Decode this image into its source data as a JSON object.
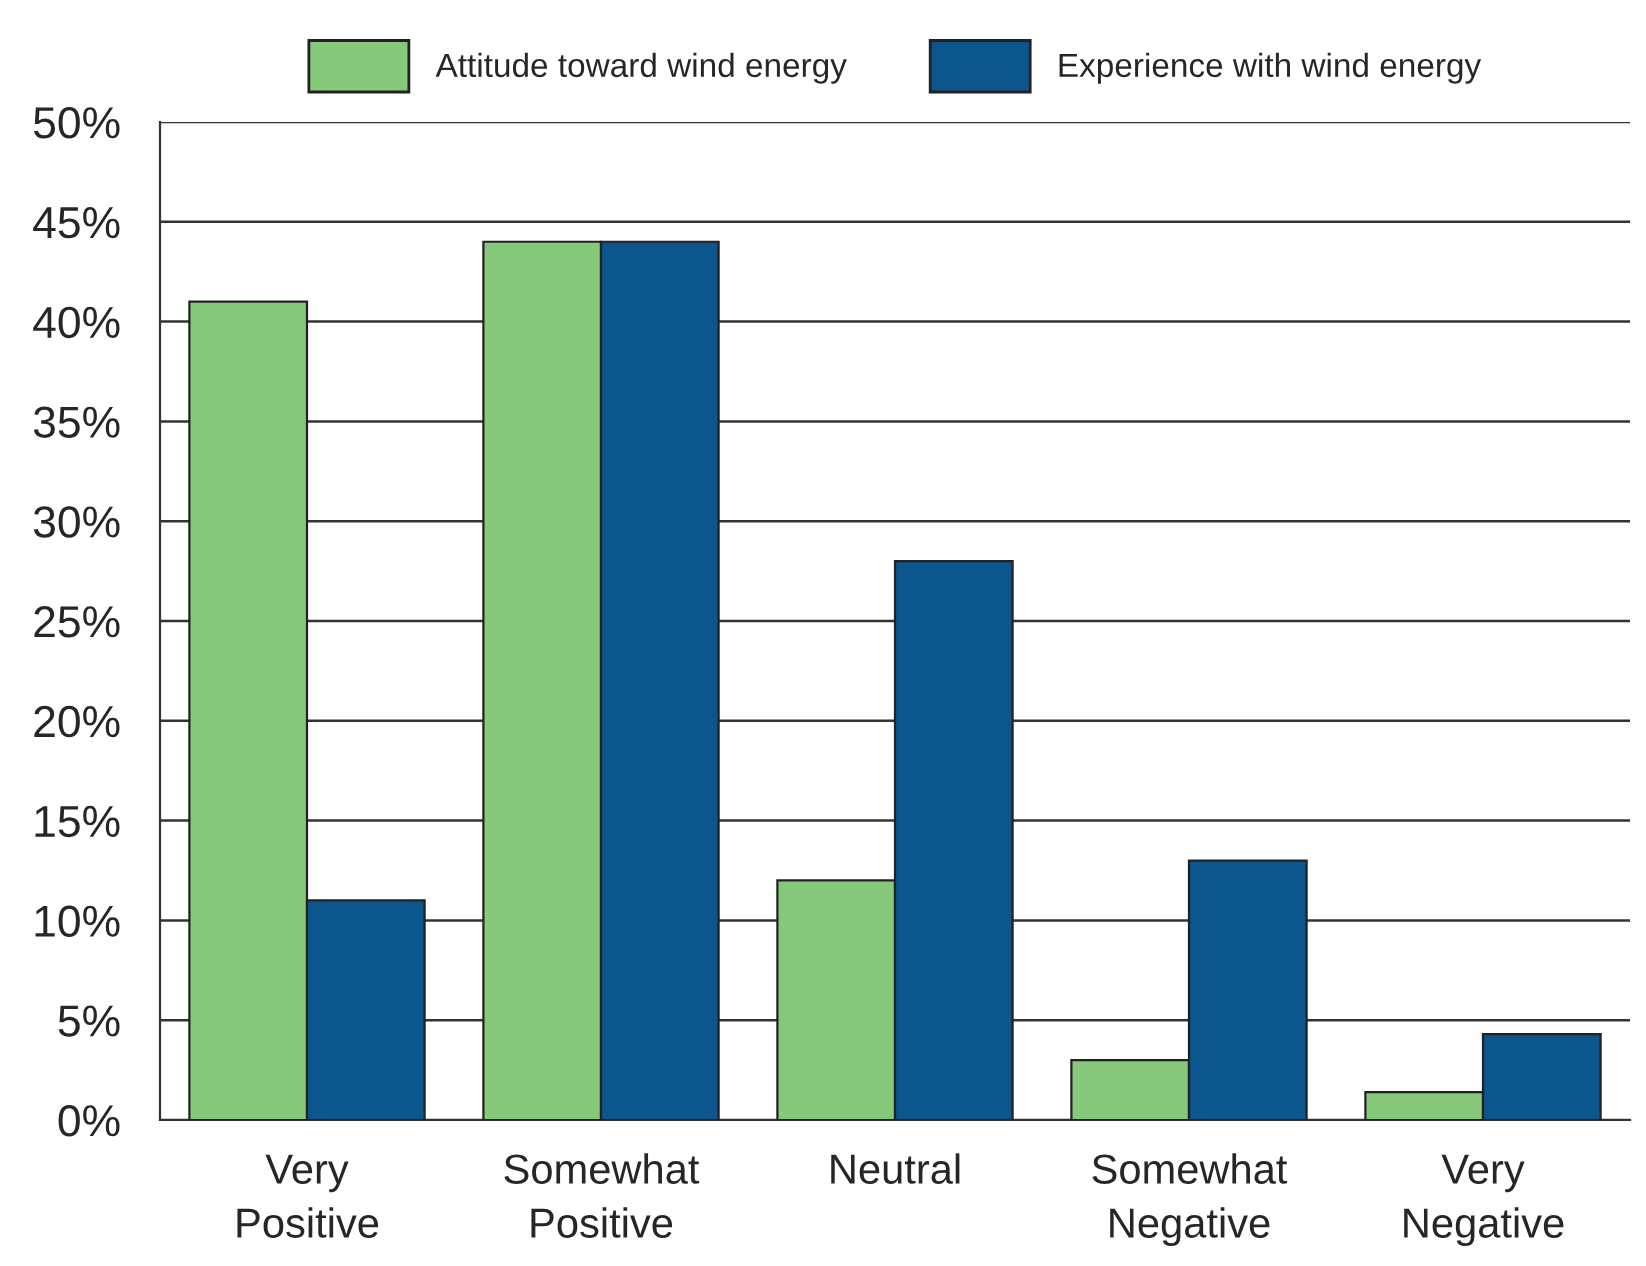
{
  "chart_data": {
    "type": "bar",
    "categories": [
      "Very\nPositive",
      "Somewhat\nPositive",
      "Neutral",
      "Somewhat\nNegative",
      "Very\nNegative"
    ],
    "series": [
      {
        "name": "Attitude toward wind energy",
        "color": "#86c97a",
        "values": [
          41,
          44,
          12,
          3,
          1.4
        ]
      },
      {
        "name": "Experience with wind energy",
        "color": "#0b568c",
        "values": [
          11,
          44,
          28,
          13,
          4.3
        ]
      }
    ],
    "ylim": [
      0,
      50
    ],
    "yticks": [
      {
        "value": 0,
        "label": "0%"
      },
      {
        "value": 5,
        "label": "5%"
      },
      {
        "value": 10,
        "label": "10%"
      },
      {
        "value": 15,
        "label": "15%"
      },
      {
        "value": 20,
        "label": "20%"
      },
      {
        "value": 25,
        "label": "25%"
      },
      {
        "value": 30,
        "label": "30%"
      },
      {
        "value": 35,
        "label": "35%"
      },
      {
        "value": 40,
        "label": "40%"
      },
      {
        "value": 45,
        "label": "45%"
      },
      {
        "value": 50,
        "label": "50%"
      }
    ],
    "grid": "y",
    "legend": "top"
  }
}
